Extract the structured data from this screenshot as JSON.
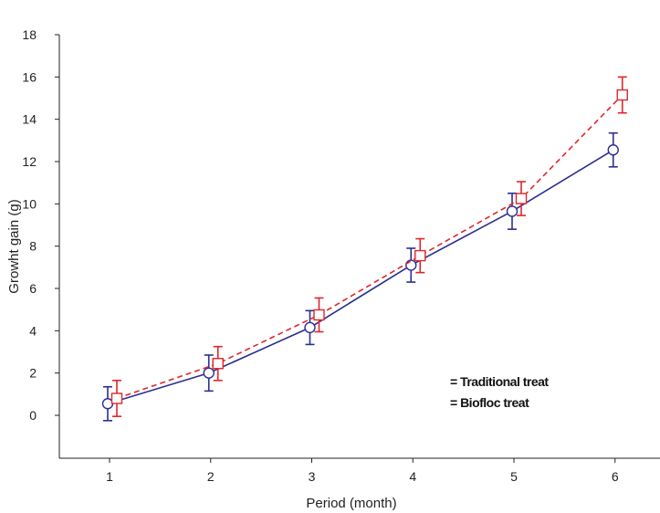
{
  "chart_data": {
    "type": "line",
    "title": "",
    "xlabel": "Period (month)",
    "ylabel": "Growht  gain (g)",
    "xlim": [
      0.5,
      6.5
    ],
    "ylim": [
      -2,
      18
    ],
    "x_ticks": [
      1,
      2,
      3,
      4,
      5,
      6
    ],
    "y_ticks": [
      0,
      2,
      4,
      6,
      8,
      10,
      12,
      14,
      16,
      18
    ],
    "grid": false,
    "legend_position": "bottom-right",
    "series": [
      {
        "name": "Traditional treat",
        "legend_label": "= Traditional treat",
        "color": "#2b2f8f",
        "line_style": "solid",
        "marker": "circle",
        "x": [
          1,
          2,
          3,
          4,
          5,
          6
        ],
        "y": [
          0.55,
          2.0,
          4.15,
          7.1,
          9.65,
          12.55
        ],
        "err": [
          0.8,
          0.85,
          0.8,
          0.8,
          0.85,
          0.8
        ]
      },
      {
        "name": "Biofloc treat",
        "legend_label": "= Biofloc treat",
        "color": "#e0262b",
        "line_style": "dashed",
        "marker": "square",
        "x": [
          1,
          2,
          3,
          4,
          5,
          6
        ],
        "y": [
          0.8,
          2.45,
          4.75,
          7.55,
          10.25,
          15.15
        ],
        "err": [
          0.85,
          0.8,
          0.8,
          0.8,
          0.8,
          0.85
        ]
      }
    ]
  }
}
